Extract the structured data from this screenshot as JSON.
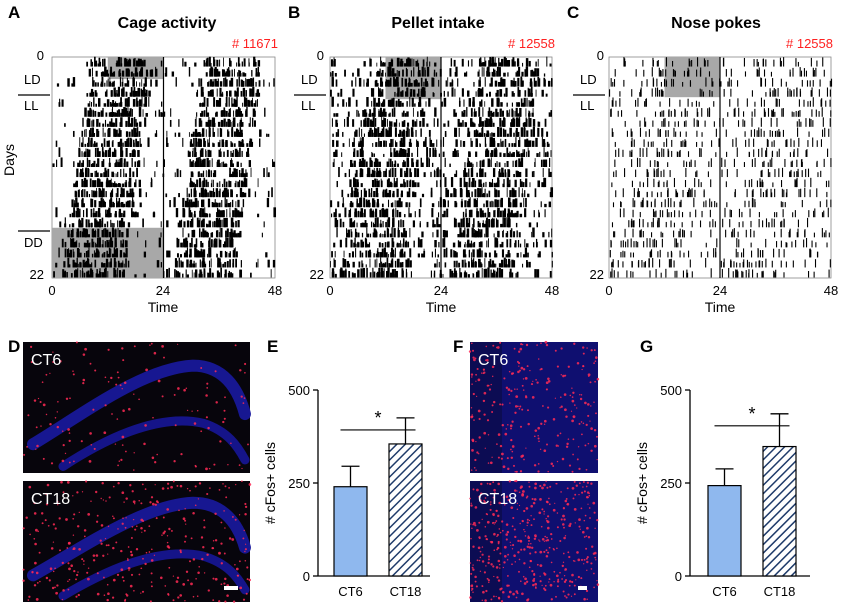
{
  "colors": {
    "mouse_id": "#ff2020",
    "ct6_bar": "#8fb8ee",
    "ct18_hatch": "#1f3b6a",
    "shade": "#a8a8a8",
    "stain_nuclei": "#1a1aa0",
    "stain_cfos": "#ff2a55"
  },
  "panels": {
    "A": {
      "label": "A",
      "title": "Cage activity",
      "mouse": "# 11671",
      "y_top": "0",
      "y_bottom": "22",
      "ylabel": "Days",
      "phases": [
        "LD",
        "LL",
        "DD"
      ],
      "x_ticks": [
        "0",
        "24",
        "48"
      ],
      "xlabel": "Time"
    },
    "B": {
      "label": "B",
      "title": "Pellet intake",
      "mouse": "# 12558",
      "y_top": "0",
      "y_bottom": "22",
      "phases": [
        "LD",
        "LL"
      ],
      "x_ticks": [
        "0",
        "24",
        "48"
      ],
      "xlabel": "Time"
    },
    "C": {
      "label": "C",
      "title": "Nose pokes",
      "mouse": "# 12558",
      "y_top": "0",
      "y_bottom": "22",
      "phases": [
        "LD",
        "LL"
      ],
      "x_ticks": [
        "0",
        "24",
        "48"
      ],
      "xlabel": "Time"
    },
    "D": {
      "label": "D",
      "images": [
        "CT6",
        "CT18"
      ],
      "icon": "brain-section-micrograph-icon"
    },
    "E": {
      "label": "E"
    },
    "F": {
      "label": "F",
      "images": [
        "CT6",
        "CT18"
      ],
      "icon": "brain-section-micrograph-icon"
    },
    "G": {
      "label": "G"
    }
  },
  "chart_data": [
    {
      "panel": "E",
      "type": "bar",
      "categories": [
        "CT6",
        "CT18"
      ],
      "values": [
        240,
        355
      ],
      "errors": [
        55,
        70
      ],
      "ylabel": "# cFos+ cells",
      "ylim": [
        0,
        500
      ],
      "yticks": [
        0,
        250,
        500
      ],
      "significance": "*"
    },
    {
      "panel": "G",
      "type": "bar",
      "categories": [
        "CT6",
        "CT18"
      ],
      "values": [
        243,
        348
      ],
      "errors": [
        45,
        88
      ],
      "ylabel": "# cFos+ cells",
      "ylim": [
        0,
        500
      ],
      "yticks": [
        0,
        250,
        500
      ],
      "significance": "*"
    }
  ]
}
